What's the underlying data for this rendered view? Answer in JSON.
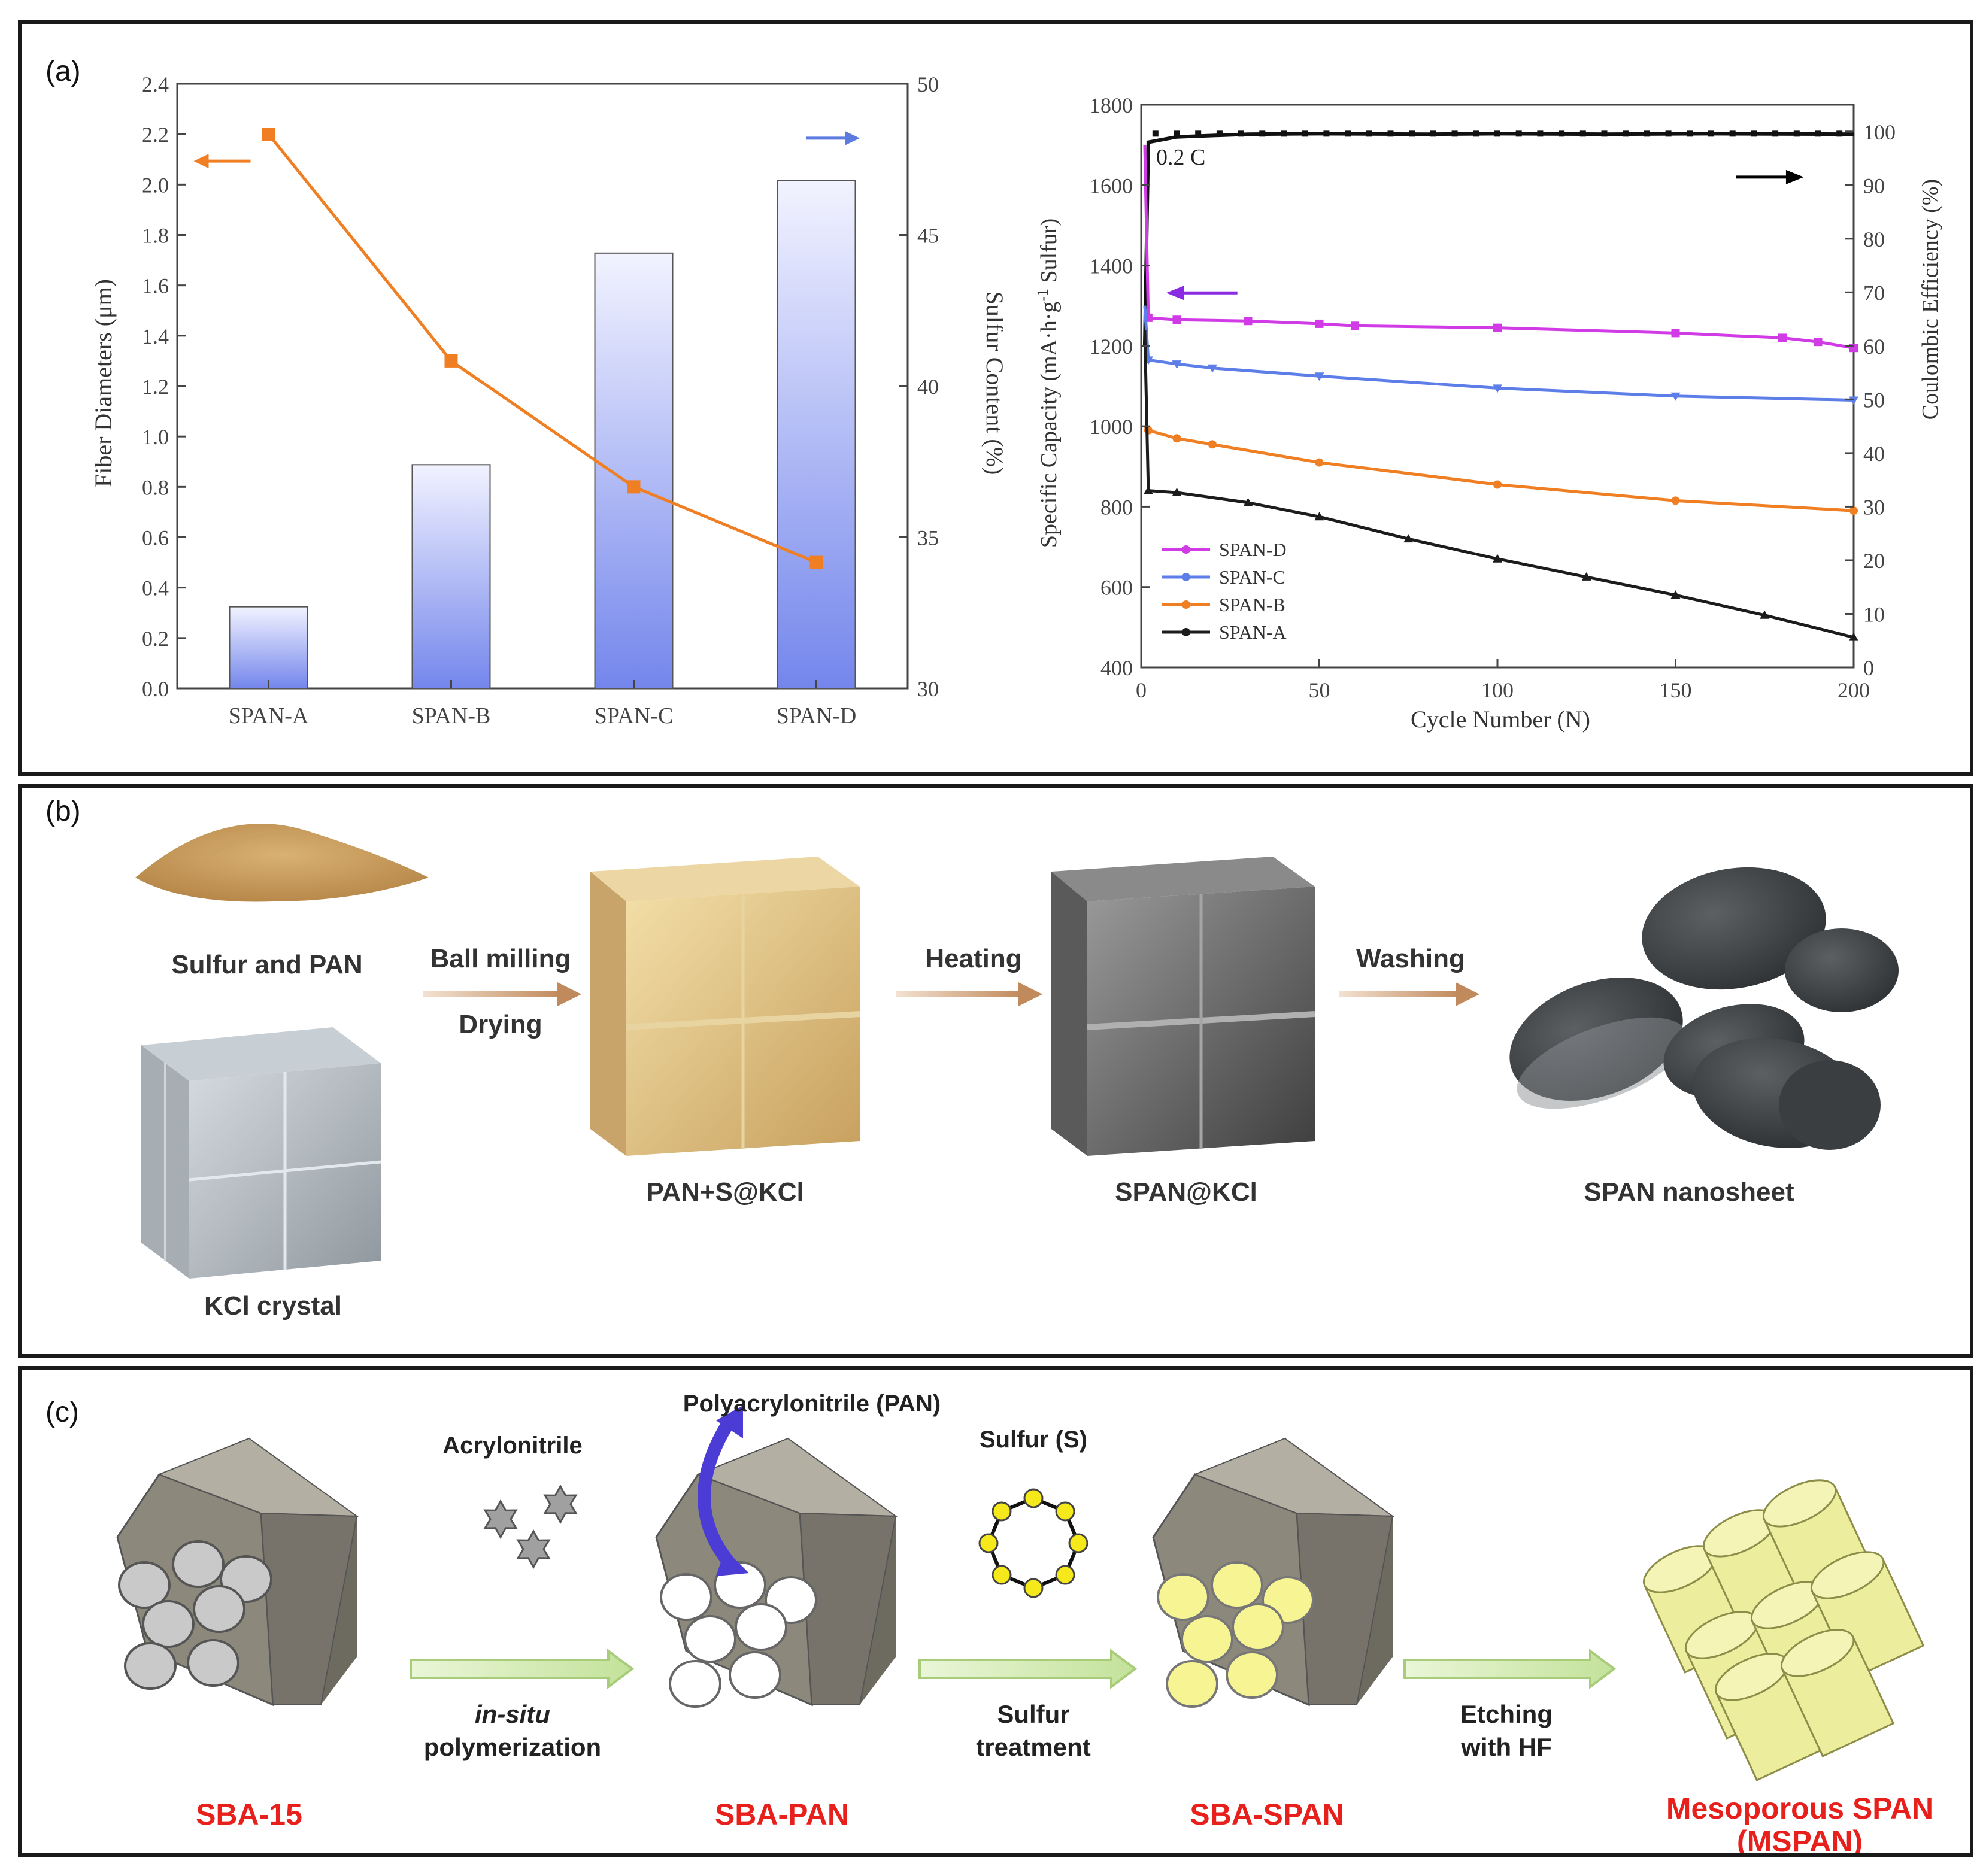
{
  "panels": {
    "a": {
      "label": "(a)"
    },
    "b": {
      "label": "(b)"
    },
    "c": {
      "label": "(c)"
    }
  },
  "chart_data": [
    {
      "type": "bar",
      "categories": [
        "SPAN-A",
        "SPAN-B",
        "SPAN-C",
        "SPAN-D"
      ],
      "series": [
        {
          "name": "Fiber Diameters (μm)",
          "type": "line",
          "axis": "left",
          "color": "#f07f23",
          "values": [
            2.2,
            1.3,
            0.8,
            0.5
          ]
        },
        {
          "name": "Sulfur Content (%)",
          "type": "bar",
          "axis": "right",
          "color": "#8090ee",
          "values": [
            32.7,
            37.4,
            44.4,
            46.8
          ]
        }
      ],
      "ylabel": "Fiber Diameters (μm)",
      "ylabel2": "Sulfur Content (%)",
      "ylim": [
        0.0,
        2.4
      ],
      "ylim2": [
        30,
        50
      ],
      "yticks": [
        "0.0",
        "0.2",
        "0.4",
        "0.6",
        "0.8",
        "1.0",
        "1.2",
        "1.4",
        "1.6",
        "1.8",
        "2.0",
        "2.2",
        "2.4"
      ],
      "yticks2": [
        "30",
        "35",
        "40",
        "45",
        "50"
      ],
      "arrow_colors": {
        "left": "#f07f23",
        "right": "#5b7be0"
      }
    },
    {
      "type": "line",
      "xlabel": "Cycle Number (N)",
      "ylabel": "Specific Capacity (mA·h·g⁻¹ Sulfur)",
      "ylabel_parts": {
        "pre": "Specific Capacity (mA·h·g",
        "sup": "-1",
        "post": " Sulfur)"
      },
      "ylabel2": "Coulombic Efficiency (%)",
      "xlim": [
        0,
        200
      ],
      "ylim": [
        400,
        1800
      ],
      "ylim2": [
        0,
        105
      ],
      "xticks": [
        "0",
        "50",
        "100",
        "150",
        "200"
      ],
      "yticks": [
        "400",
        "600",
        "800",
        "1000",
        "1200",
        "1400",
        "1600",
        "1800"
      ],
      "yticks2": [
        "0",
        "10",
        "20",
        "30",
        "40",
        "50",
        "60",
        "70",
        "80",
        "90",
        "100"
      ],
      "annotation": "0.2 C",
      "series": [
        {
          "name": "SPAN-D",
          "color": "#d13be6",
          "marker": "square",
          "x": [
            1,
            2,
            10,
            30,
            50,
            60,
            100,
            150,
            180,
            190,
            200
          ],
          "y": [
            1700,
            1270,
            1265,
            1262,
            1255,
            1250,
            1245,
            1232,
            1220,
            1210,
            1195
          ]
        },
        {
          "name": "SPAN-C",
          "color": "#5d7ee8",
          "marker": "triangle-down",
          "x": [
            1,
            2,
            10,
            20,
            50,
            100,
            150,
            200
          ],
          "y": [
            1300,
            1165,
            1155,
            1145,
            1125,
            1095,
            1075,
            1065
          ]
        },
        {
          "name": "SPAN-B",
          "color": "#f07f23",
          "marker": "circle",
          "x": [
            1,
            2,
            10,
            20,
            50,
            100,
            150,
            200
          ],
          "y": [
            1000,
            990,
            970,
            955,
            910,
            855,
            815,
            790
          ]
        },
        {
          "name": "SPAN-A",
          "color": "#1c1c1c",
          "marker": "triangle-up",
          "x": [
            1,
            2,
            10,
            30,
            50,
            75,
            100,
            125,
            150,
            175,
            200
          ],
          "y": [
            1240,
            840,
            835,
            810,
            775,
            720,
            670,
            625,
            580,
            530,
            475
          ]
        }
      ],
      "efficiency": {
        "name": "Coulombic Efficiency",
        "color": "#111111",
        "values_percent": [
          60,
          98,
          99,
          99.5,
          99.6,
          99.5,
          99.6,
          99.5,
          99.6,
          99.5
        ]
      },
      "arrow_colors": {
        "left": "#8a2be2",
        "right": "#000000"
      }
    }
  ],
  "scheme_b": {
    "sulfur_pan": "Sulfur and PAN",
    "kcl": "KCl crystal",
    "step1_top": "Ball milling",
    "step1_bottom": "Drying",
    "step2": "Heating",
    "step3": "Washing",
    "pan_s_kcl": "PAN+S@KCl",
    "span_kcl": "SPAN@KCl",
    "span_nanosheet": "SPAN nanosheet"
  },
  "scheme_c": {
    "acrylonitrile": "Acrylonitrile",
    "pan_polymer": "Polyacrylonitrile (PAN)",
    "sulfur": "Sulfur (S)",
    "step1_italic": "in-situ",
    "step1": "polymerization",
    "step2_line1": "Sulfur",
    "step2_line2": "treatment",
    "step3_line1": "Etching",
    "step3_line2": "with HF",
    "sba15": "SBA-15",
    "sba_pan": "SBA-PAN",
    "sba_span": "SBA-SPAN",
    "mspan_line1": "Mesoporous SPAN",
    "mspan_line2": "(MSPAN)",
    "label_color": "#e8201c"
  }
}
